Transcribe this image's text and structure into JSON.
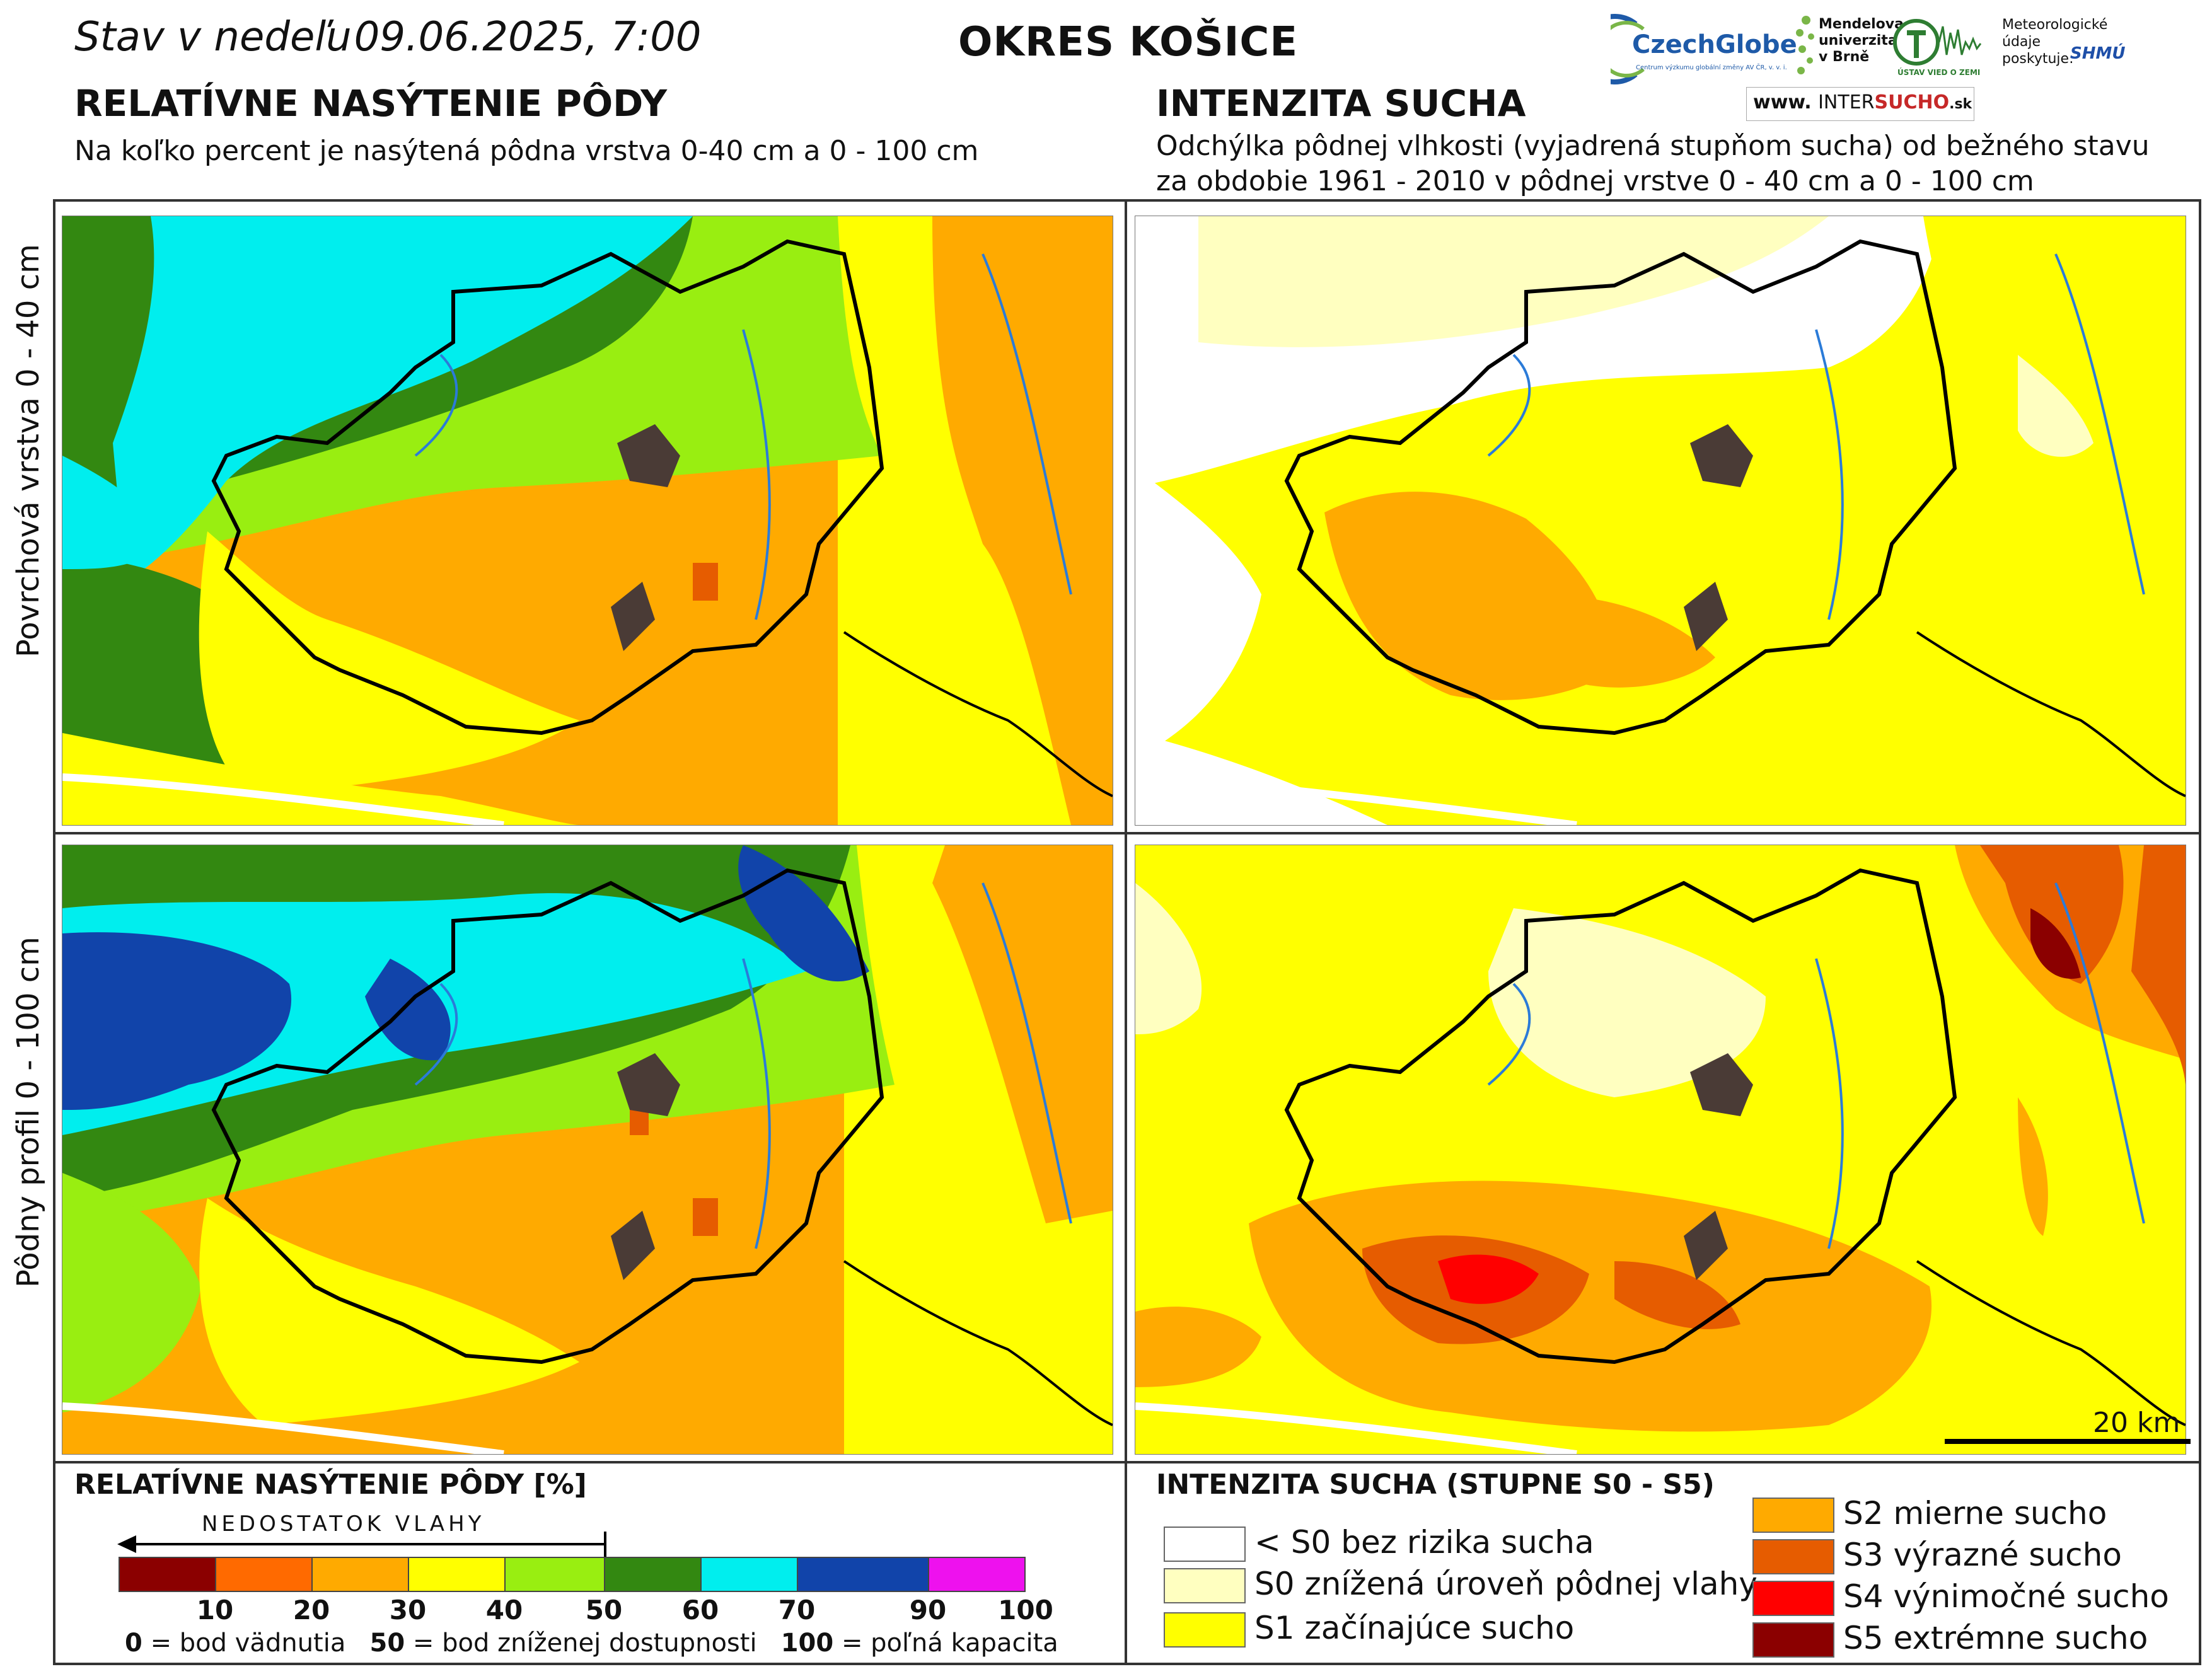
{
  "header": {
    "date_prefix": "Stav v nedeľu",
    "date_value": "09.06.2025, 7:00",
    "district": "OKRES  KOŠICE"
  },
  "left_panel": {
    "title": "RELATÍVNE NASÝTENIE PÔDY",
    "subtitle": "Na koľko percent je nasýtená pôdna vrstva 0-40 cm a 0 - 100 cm"
  },
  "right_panel": {
    "title": "INTENZITA SUCHA",
    "subtitle_line1": "Odchýlka pôdnej vlhkosti (vyjadrená stupňom sucha) od bežného stavu",
    "subtitle_line2": "za obdobie 1961 - 2010 v pôdnej vrstve 0 - 40 cm a 0 - 100 cm"
  },
  "logos": {
    "czechglobe": "CzechGlobe",
    "czechglobe_sub": "Centrum výzkumu globální změny AV ČR, v. v. i.",
    "mendelu": "Mendelova univerzita v Brně",
    "uvz": "ÚSTAV VIED O ZEMI",
    "meteo": "Meteorologické údaje poskytuje:",
    "shmu": "SHMÚ",
    "intersucho_www": "www.",
    "intersucho_inter": "INTER",
    "intersucho_sucho": "SUCHO",
    "intersucho_sk": ".sk"
  },
  "row_labels": {
    "top": "Povrchová vrstva 0 - 40 cm",
    "bottom": "Pôdny profil 0 - 100 cm"
  },
  "scale": {
    "label": "20 km"
  },
  "legend_saturation": {
    "title": "RELATÍVNE NASÝTENIE PÔDY [%]",
    "arrow_label": "NEDOSTATOK VLAHY",
    "segments": [
      {
        "color": "#8b0000"
      },
      {
        "color": "#ff6a00"
      },
      {
        "color": "#ffaa00"
      },
      {
        "color": "#ffff00"
      },
      {
        "color": "#99ee11"
      },
      {
        "color": "#338811"
      },
      {
        "color": "#00eeee"
      },
      {
        "color": "#1144aa"
      },
      {
        "color": "#ee11ee"
      }
    ],
    "ticks": [
      "10",
      "20",
      "30",
      "40",
      "50",
      "60",
      "70",
      "90",
      "100"
    ],
    "note_0_value": "0",
    "note_0_text": "= bod vädnutia",
    "note_50_value": "50",
    "note_50_text": "= bod zníženej dostupnosti",
    "note_100_value": "100",
    "note_100_text": "= poľná kapacita"
  },
  "legend_drought": {
    "title": "INTENZITA SUCHA (STUPNE S0 - S5)",
    "classes": [
      {
        "label": "< S0 bez rizika sucha",
        "color": "#ffffff"
      },
      {
        "label": "S0 znížená úroveň pôdnej vlahy",
        "color": "#ffffc0"
      },
      {
        "label": "S1 začínajúce sucho",
        "color": "#ffff00"
      },
      {
        "label": "S2 mierne sucho",
        "color": "#ffaa00"
      },
      {
        "label": "S3 výrazné sucho",
        "color": "#e65c00"
      },
      {
        "label": "S4 výnimočné sucho",
        "color": "#ff0000"
      },
      {
        "label": "S5 extrémne sucho",
        "color": "#8b0000"
      }
    ]
  }
}
